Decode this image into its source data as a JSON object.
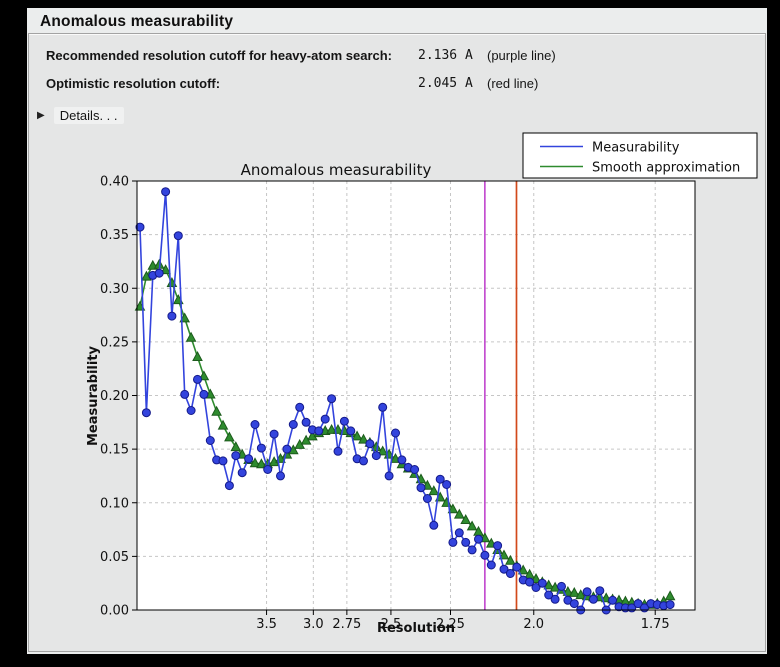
{
  "panel": {
    "title": "Anomalous measurability"
  },
  "summary": {
    "rows": [
      {
        "label": "Recommended resolution cutoff for heavy-atom search:",
        "value": "2.136 A",
        "note": "(purple line)"
      },
      {
        "label": "Optimistic resolution cutoff:",
        "value": "2.045 A",
        "note": "(red line)"
      }
    ],
    "details_label": "Details. . .",
    "disclosure_glyph": "▶"
  },
  "colors": {
    "purple_line": "#c44fd0",
    "red_line": "#d2491b",
    "measurability_blue": "#3344dd",
    "smooth_green": "#2e8b2e",
    "grid": "#c6c6c6",
    "plot_bg": "#ffffff"
  },
  "chart_data": {
    "type": "line",
    "title": "Anomalous measurability",
    "xlabel": "Resolution",
    "ylabel": "Measurability",
    "grid": true,
    "x_axis": {
      "unit": "Angstrom, spaced linearly in 1/d^2",
      "ticks": [
        3.5,
        3.0,
        2.75,
        2.5,
        2.25,
        2.0,
        1.75
      ],
      "tick_labels": [
        "3.5",
        "3.0",
        "2.75",
        "2.5",
        "2.25",
        "2.0",
        "1.75"
      ],
      "invsq_range": [
        0,
        0.3516
      ]
    },
    "y_axis": {
      "range": [
        0,
        0.4
      ],
      "tick_step": 0.05,
      "tick_labels": [
        "0.00",
        "0.05",
        "0.10",
        "0.15",
        "0.20",
        "0.25",
        "0.30",
        "0.35",
        "0.40"
      ]
    },
    "x_invsq_start": 0.0019,
    "x_invsq_step": 0.004024,
    "series": [
      {
        "name": "Measurability",
        "color": "#3344dd",
        "edge_color": "#141a8a",
        "marker": "circle",
        "values": [
          0.357,
          0.184,
          0.312,
          0.314,
          0.39,
          0.274,
          0.349,
          0.201,
          0.186,
          0.215,
          0.201,
          0.158,
          0.14,
          0.139,
          0.116,
          0.144,
          0.128,
          0.141,
          0.173,
          0.151,
          0.131,
          0.164,
          0.125,
          0.15,
          0.173,
          0.189,
          0.175,
          0.168,
          0.167,
          0.178,
          0.197,
          0.148,
          0.176,
          0.167,
          0.141,
          0.139,
          0.155,
          0.144,
          0.189,
          0.125,
          0.165,
          0.14,
          0.133,
          0.131,
          0.114,
          0.104,
          0.079,
          0.122,
          0.117,
          0.063,
          0.072,
          0.063,
          0.056,
          0.066,
          0.051,
          0.042,
          0.06,
          0.038,
          0.034,
          0.04,
          0.028,
          0.026,
          0.021,
          0.025,
          0.014,
          0.01,
          0.022,
          0.009,
          0.006,
          0.0,
          0.017,
          0.01,
          0.018,
          0.0,
          0.009,
          0.003,
          0.002,
          0.002,
          0.006,
          0.002,
          0.006,
          0.005,
          0.004,
          0.005
        ]
      },
      {
        "name": "Smooth approximation",
        "color": "#2e8b2e",
        "edge_color": "#1c5a1c",
        "marker": "triangle",
        "values": [
          0.283,
          0.311,
          0.321,
          0.322,
          0.317,
          0.305,
          0.289,
          0.272,
          0.254,
          0.236,
          0.218,
          0.201,
          0.185,
          0.172,
          0.161,
          0.152,
          0.145,
          0.14,
          0.137,
          0.136,
          0.136,
          0.138,
          0.141,
          0.145,
          0.149,
          0.154,
          0.158,
          0.162,
          0.165,
          0.167,
          0.168,
          0.168,
          0.167,
          0.165,
          0.162,
          0.159,
          0.156,
          0.152,
          0.148,
          0.145,
          0.141,
          0.136,
          0.132,
          0.127,
          0.122,
          0.116,
          0.111,
          0.105,
          0.1,
          0.094,
          0.089,
          0.084,
          0.078,
          0.073,
          0.067,
          0.062,
          0.056,
          0.051,
          0.046,
          0.041,
          0.037,
          0.033,
          0.029,
          0.026,
          0.023,
          0.021,
          0.019,
          0.017,
          0.016,
          0.014,
          0.013,
          0.012,
          0.012,
          0.011,
          0.01,
          0.009,
          0.008,
          0.007,
          0.006,
          0.005,
          0.005,
          0.006,
          0.008,
          0.013
        ]
      }
    ],
    "vlines": [
      {
        "name": "recommended-cutoff",
        "resolution": 2.136,
        "color": "#c44fd0",
        "label": "purple line"
      },
      {
        "name": "optimistic-cutoff",
        "resolution": 2.045,
        "color": "#d2491b",
        "label": "red line"
      }
    ],
    "legend": {
      "position": "upper right",
      "entries": [
        "Measurability",
        "Smooth approximation"
      ]
    }
  }
}
